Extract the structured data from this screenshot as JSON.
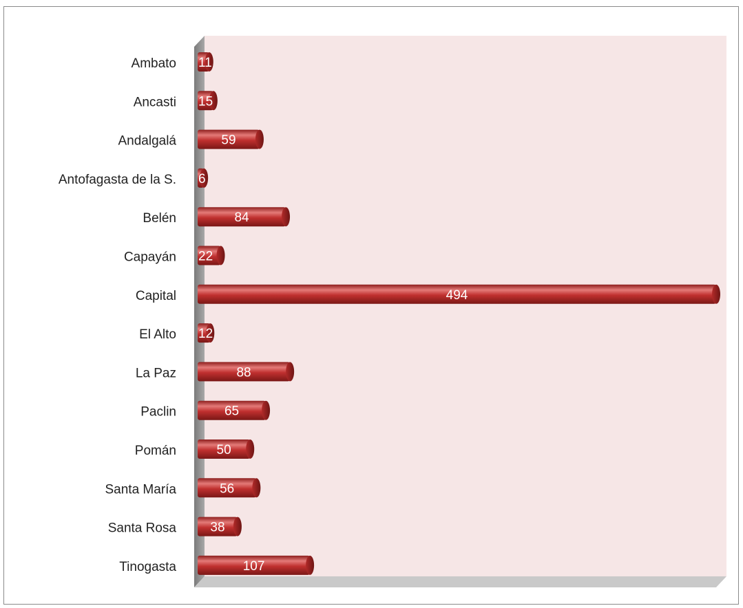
{
  "chart_data": {
    "type": "bar",
    "orientation": "horizontal",
    "categories": [
      "Ambato",
      "Ancasti",
      "Andalgalá",
      "Antofagasta de la S.",
      "Belén",
      "Capayán",
      "Capital",
      "El Alto",
      "La Paz",
      "Paclin",
      "Pomán",
      "Santa María",
      "Santa Rosa",
      "Tinogasta"
    ],
    "values": [
      11,
      15,
      59,
      6,
      84,
      22,
      494,
      12,
      88,
      65,
      50,
      56,
      38,
      107
    ],
    "value_labels": [
      "11",
      "15",
      "59",
      "6",
      "84",
      "22",
      "494",
      "12",
      "88",
      "65",
      "50",
      "56",
      "38",
      "107"
    ],
    "xlim": [
      0,
      494
    ],
    "title": "",
    "xlabel": "",
    "ylabel": "",
    "grid": false,
    "legend": "none",
    "style": "3d-cylinder"
  },
  "colors": {
    "bar": "#c0302f",
    "bar_dark": "#8e1f1e",
    "bar_highlight": "#e47a78",
    "plot_background": "#f6e6e6",
    "wall_side": "#8f8f8f",
    "frame_border": "#8a8a8a",
    "text": "#222222",
    "value_text": "#ffffff"
  }
}
